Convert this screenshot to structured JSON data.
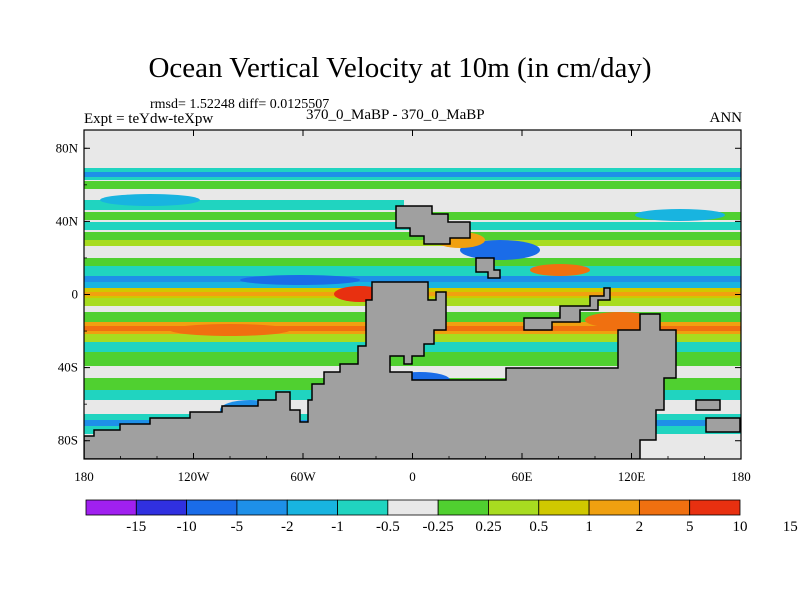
{
  "title": "Ocean Vertical Velocity at 10m (in cm/day)",
  "stats": "rmsd= 1.52248 diff= 0.0125507",
  "experiment": "Expt = teYdw-teXpw",
  "subtitle": "370_0_MaBP - 370_0_MaBP",
  "season": "ANN",
  "axes": {
    "x_ticks": [
      {
        "value": -180,
        "label": "180"
      },
      {
        "value": -120,
        "label": "120W"
      },
      {
        "value": -60,
        "label": "60W"
      },
      {
        "value": 0,
        "label": "0"
      },
      {
        "value": 60,
        "label": "60E"
      },
      {
        "value": 120,
        "label": "120E"
      },
      {
        "value": 180,
        "label": "180"
      }
    ],
    "y_ticks": [
      {
        "value": 80,
        "label": "80N"
      },
      {
        "value": 40,
        "label": "40N"
      },
      {
        "value": 0,
        "label": "0"
      },
      {
        "value": -40,
        "label": "40S"
      },
      {
        "value": -80,
        "label": "80S"
      }
    ],
    "lon_range": [
      -180,
      180
    ],
    "lat_range": [
      -90,
      90
    ]
  },
  "colorbar": {
    "colors": [
      "#a020f0",
      "#3030e0",
      "#1a6ce8",
      "#1e90e8",
      "#18b4e0",
      "#20d4c0",
      "#e8e8e8",
      "#50d030",
      "#a8dc20",
      "#d0c800",
      "#f0a010",
      "#f07010",
      "#e83010"
    ],
    "labels": [
      "-15",
      "-10",
      "-5",
      "-2",
      "-1",
      "-0.5",
      "-0.25",
      "0.25",
      "0.5",
      "1",
      "2",
      "5",
      "10",
      "15"
    ]
  },
  "land_color": "#a0a0a0"
}
